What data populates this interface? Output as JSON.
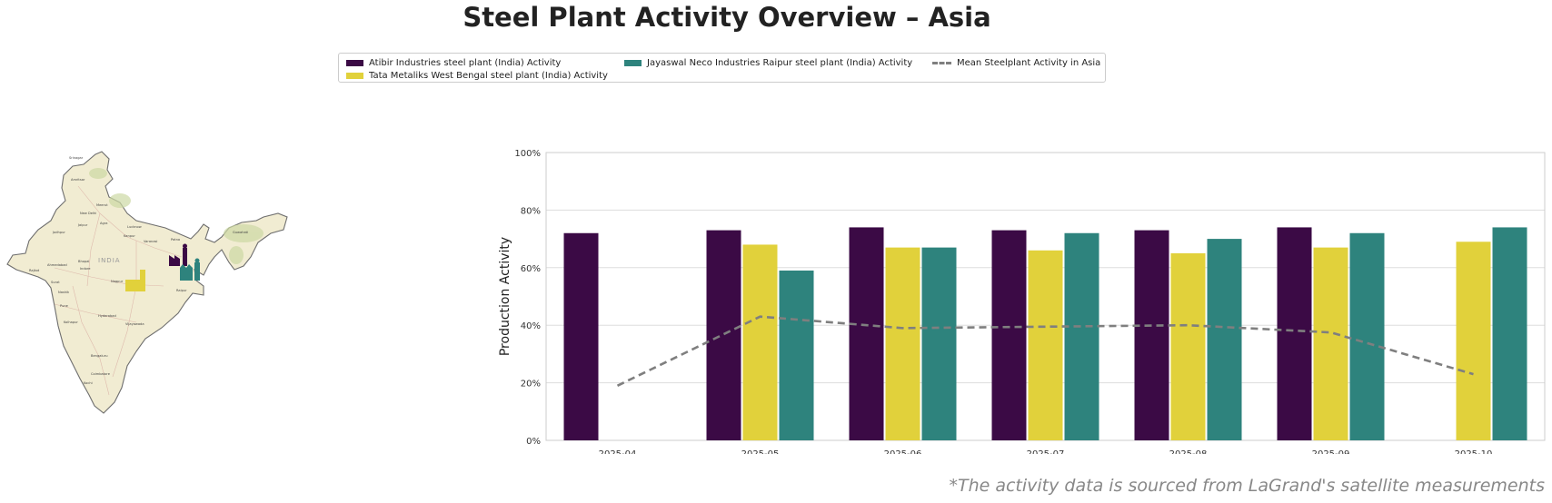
{
  "title": "Steel Plant Activity Overview – Asia",
  "footnote": "*The activity data is sourced from LaGrand's satellite measurements",
  "legend": {
    "items": [
      {
        "label": "Atibir Industries steel plant (India) Activity",
        "color": "#3b0a45"
      },
      {
        "label": "Tata Metaliks West Bengal steel plant (India) Activity",
        "color": "#e1d13b"
      },
      {
        "label": "Jayaswal Neco Industries Raipur steel plant (India) Activity",
        "color": "#2e837d"
      },
      {
        "label": "Mean Steelplant Activity in Asia",
        "color": "#7f7f7f"
      }
    ]
  },
  "map": {
    "country_label": "INDIA",
    "cities": [
      "Srinagar",
      "Amritsar",
      "Meerut",
      "New Delhi",
      "Jaipur",
      "Agra",
      "Lucknow",
      "Kanpur",
      "Patna",
      "Varanasi",
      "Jodhpur",
      "Ahmedabad",
      "Bhopal",
      "Indore",
      "Rajkot",
      "Surat",
      "Nagpur",
      "Raipur",
      "Nashik",
      "Pune",
      "Hyderabad",
      "Kolhapur",
      "Vijayawada",
      "Bengaluru",
      "Coimbatore",
      "Kochi",
      "Guwahati"
    ]
  },
  "chart_data": {
    "type": "bar",
    "categories": [
      "2025-04",
      "2025-05",
      "2025-06",
      "2025-07",
      "2025-08",
      "2025-09",
      "2025-10"
    ],
    "series": [
      {
        "name": "Atibir Industries steel plant (India) Activity",
        "values": [
          72,
          73,
          74,
          73,
          73,
          74,
          null
        ],
        "color": "#3b0a45"
      },
      {
        "name": "Tata Metaliks West Bengal steel plant (India) Activity",
        "values": [
          null,
          68,
          67,
          66,
          65,
          67,
          69
        ],
        "color": "#e1d13b"
      },
      {
        "name": "Jayaswal Neco Industries Raipur steel plant (India) Activity",
        "values": [
          null,
          59,
          67,
          72,
          70,
          72,
          74
        ],
        "color": "#2e837d"
      }
    ],
    "line": {
      "name": "Mean Steelplant Activity in Asia",
      "values": [
        19,
        43,
        39,
        39.5,
        40,
        37.5,
        23
      ],
      "color": "#7f7f7f",
      "style": "dashed"
    },
    "ylabel": "Production Activity",
    "xlabel": "",
    "ylim": [
      0,
      100
    ],
    "yticks": [
      "0%",
      "20%",
      "40%",
      "60%",
      "80%",
      "100%"
    ],
    "grid": true,
    "legend_position": "top-center"
  }
}
